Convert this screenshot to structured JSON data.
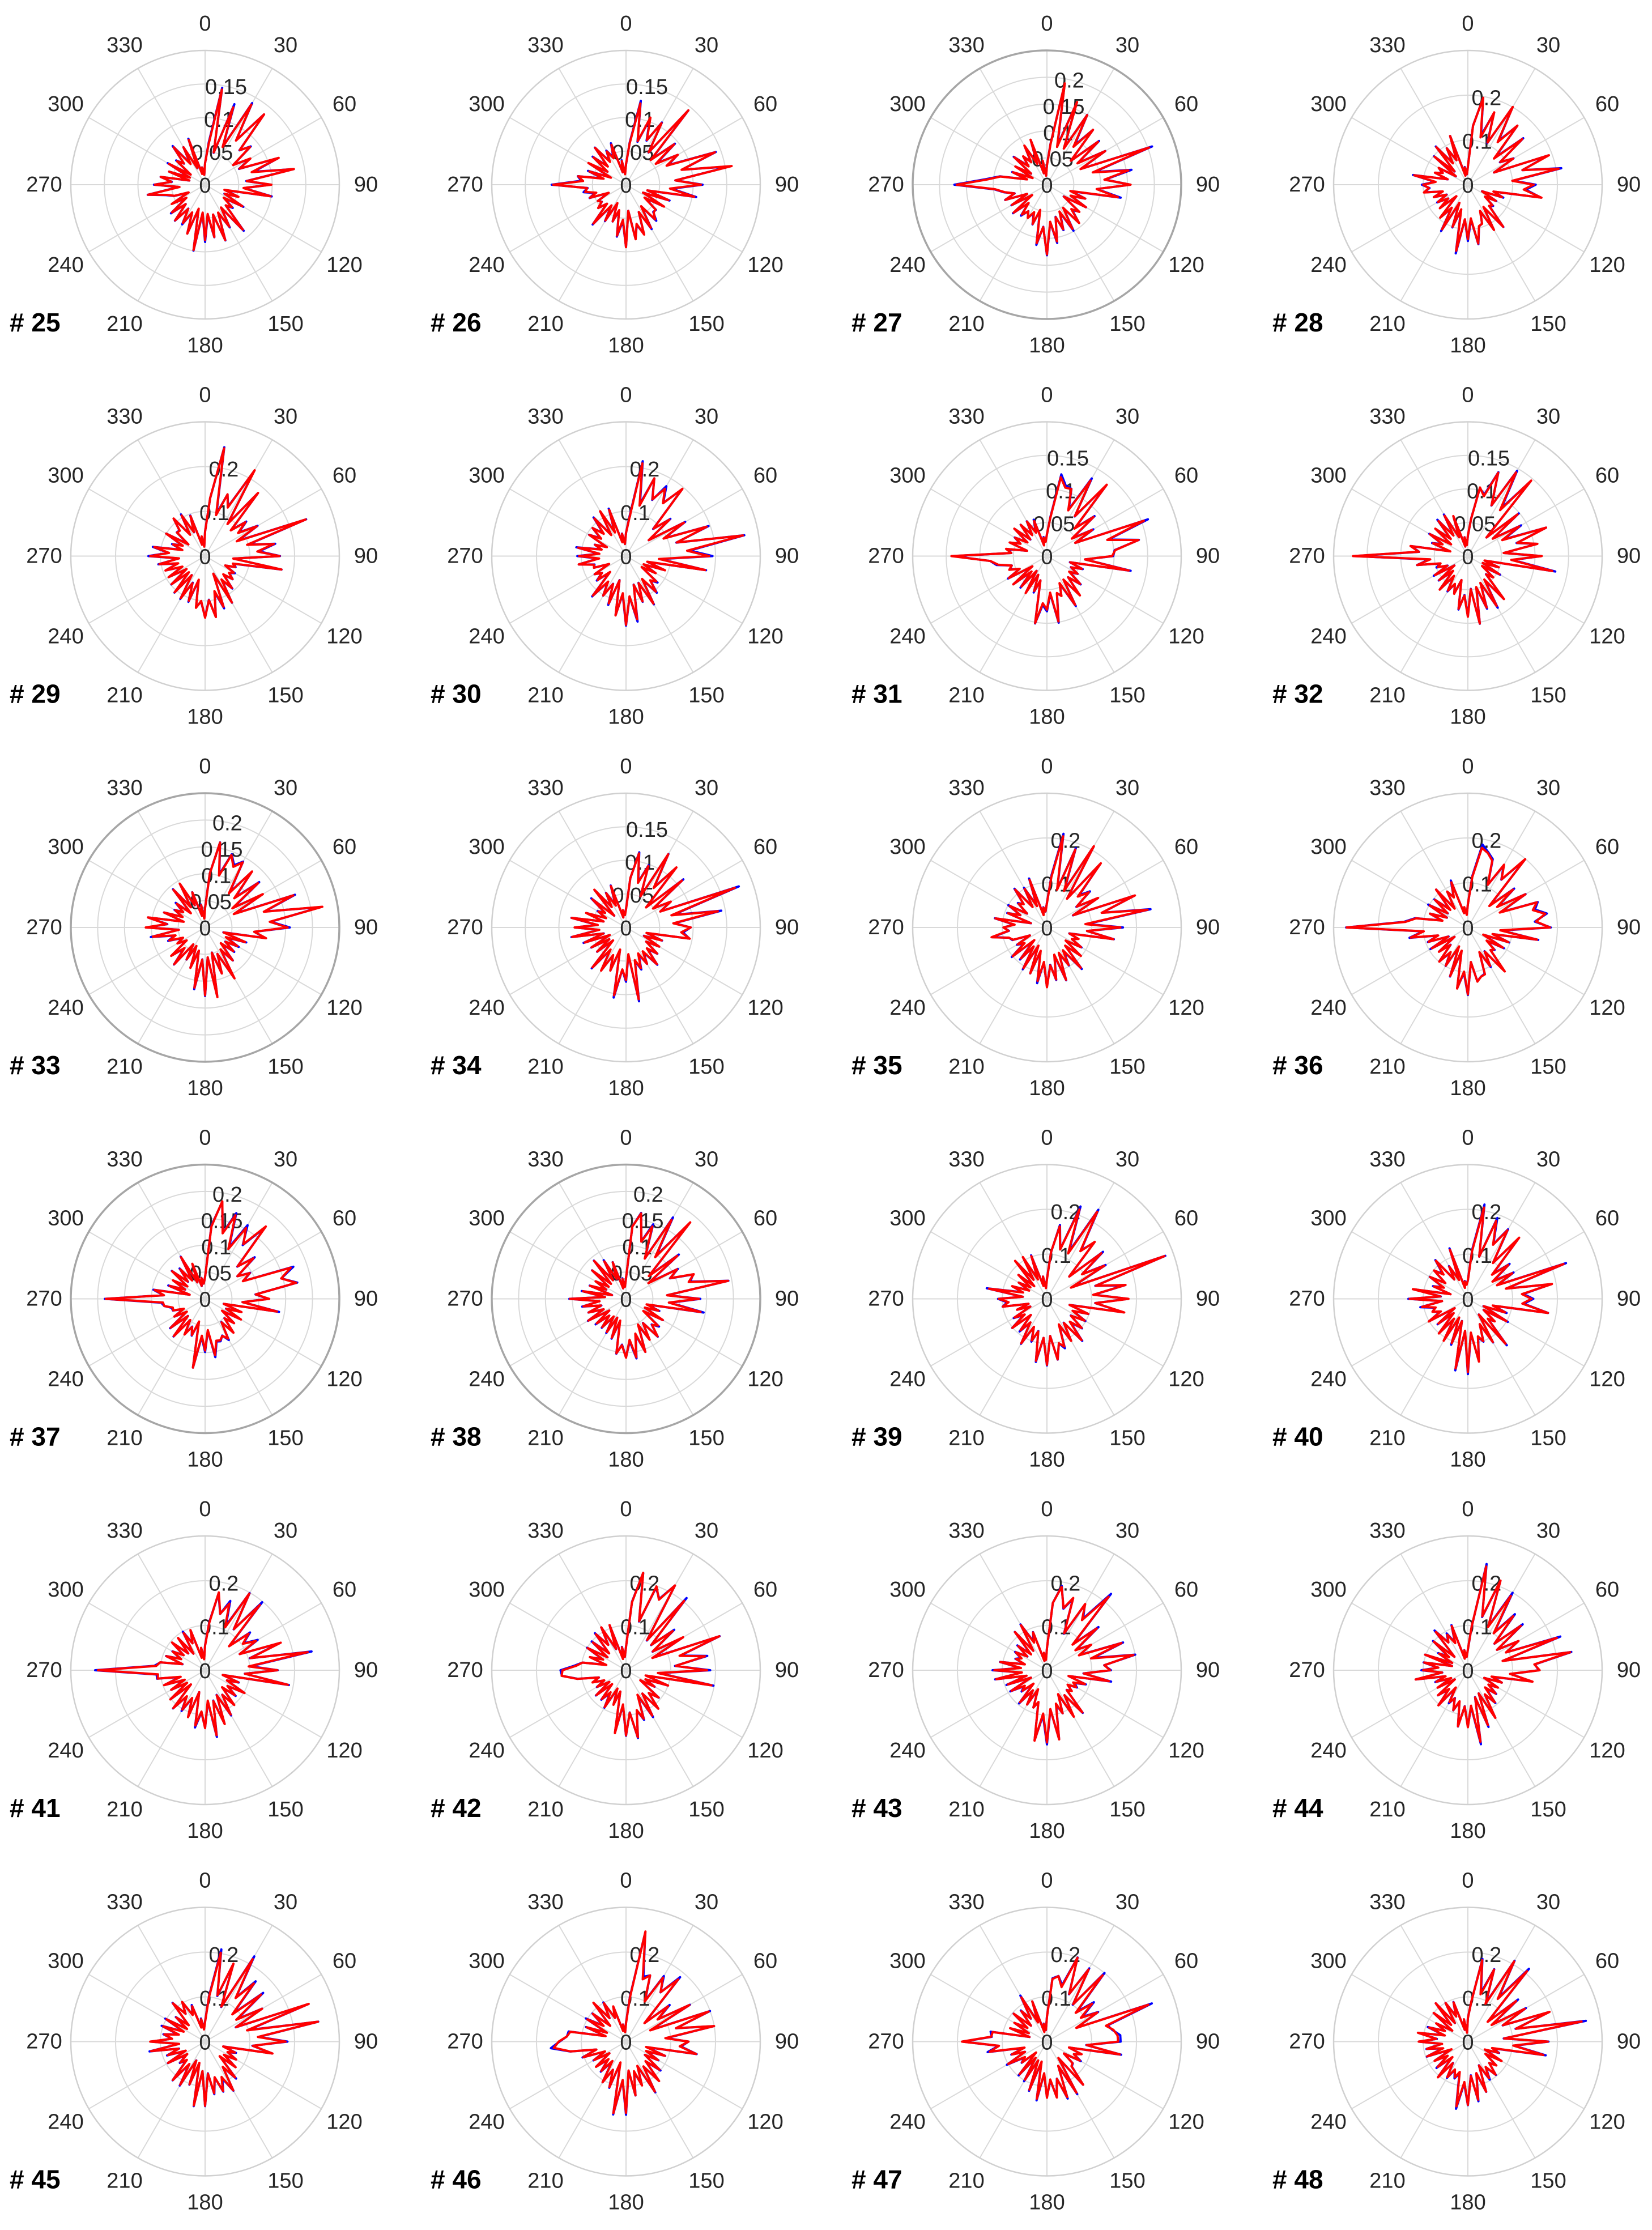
{
  "chart_data": {
    "type": "polar-line",
    "grid": {
      "rows": 6,
      "cols": 4
    },
    "theta_ticks": [
      "0",
      "30",
      "60",
      "90",
      "120",
      "150",
      "180",
      "210",
      "240",
      "270",
      "300",
      "330"
    ],
    "series_colors": [
      "#0000ff",
      "#ff0000"
    ],
    "panels": [
      {
        "label": "# 25",
        "rmax": 0.2,
        "rticks": [
          "0",
          "0.05",
          "0.1",
          "0.15"
        ],
        "seed": 25,
        "outline": "light"
      },
      {
        "label": "# 26",
        "rmax": 0.2,
        "rticks": [
          "0",
          "0.05",
          "0.1",
          "0.15"
        ],
        "seed": 26,
        "outline": "light"
      },
      {
        "label": "# 27",
        "rmax": 0.25,
        "rticks": [
          "0",
          "0.05",
          "0.1",
          "0.15",
          "0.2"
        ],
        "seed": 27,
        "outline": "dark"
      },
      {
        "label": "# 28",
        "rmax": 0.3,
        "rticks": [
          "0",
          "0.1",
          "0.2"
        ],
        "seed": 28,
        "outline": "light"
      },
      {
        "label": "# 29",
        "rmax": 0.3,
        "rticks": [
          "0",
          "0.1",
          "0.2"
        ],
        "seed": 29,
        "outline": "light"
      },
      {
        "label": "# 30",
        "rmax": 0.3,
        "rticks": [
          "0",
          "0.1",
          "0.2"
        ],
        "seed": 30,
        "outline": "light"
      },
      {
        "label": "# 31",
        "rmax": 0.2,
        "rticks": [
          "0",
          "0.05",
          "0.1",
          "0.15"
        ],
        "seed": 31,
        "outline": "light"
      },
      {
        "label": "# 32",
        "rmax": 0.2,
        "rticks": [
          "0",
          "0.05",
          "0.1",
          "0.15"
        ],
        "seed": 32,
        "outline": "light"
      },
      {
        "label": "# 33",
        "rmax": 0.25,
        "rticks": [
          "0",
          "0.05",
          "0.1",
          "0.15",
          "0.2"
        ],
        "seed": 33,
        "outline": "dark"
      },
      {
        "label": "# 34",
        "rmax": 0.2,
        "rticks": [
          "0",
          "0.05",
          "0.1",
          "0.15"
        ],
        "seed": 34,
        "outline": "light"
      },
      {
        "label": "# 35",
        "rmax": 0.3,
        "rticks": [
          "0",
          "0.1",
          "0.2"
        ],
        "seed": 35,
        "outline": "light"
      },
      {
        "label": "# 36",
        "rmax": 0.3,
        "rticks": [
          "0",
          "0.1",
          "0.2"
        ],
        "seed": 36,
        "outline": "light"
      },
      {
        "label": "# 37",
        "rmax": 0.25,
        "rticks": [
          "0",
          "0.05",
          "0.1",
          "0.15",
          "0.2"
        ],
        "seed": 37,
        "outline": "dark"
      },
      {
        "label": "# 38",
        "rmax": 0.25,
        "rticks": [
          "0",
          "0.05",
          "0.1",
          "0.15",
          "0.2"
        ],
        "seed": 38,
        "outline": "dark"
      },
      {
        "label": "# 39",
        "rmax": 0.3,
        "rticks": [
          "0",
          "0.1",
          "0.2"
        ],
        "seed": 39,
        "outline": "light"
      },
      {
        "label": "# 40",
        "rmax": 0.3,
        "rticks": [
          "0",
          "0.1",
          "0.2"
        ],
        "seed": 40,
        "outline": "light"
      },
      {
        "label": "# 41",
        "rmax": 0.3,
        "rticks": [
          "0",
          "0.1",
          "0.2"
        ],
        "seed": 41,
        "outline": "light"
      },
      {
        "label": "# 42",
        "rmax": 0.3,
        "rticks": [
          "0",
          "0.1",
          "0.2"
        ],
        "seed": 42,
        "outline": "light"
      },
      {
        "label": "# 43",
        "rmax": 0.3,
        "rticks": [
          "0",
          "0.1",
          "0.2"
        ],
        "seed": 43,
        "outline": "light"
      },
      {
        "label": "# 44",
        "rmax": 0.3,
        "rticks": [
          "0",
          "0.1",
          "0.2"
        ],
        "seed": 44,
        "outline": "light"
      },
      {
        "label": "# 45",
        "rmax": 0.3,
        "rticks": [
          "0",
          "0.1",
          "0.2"
        ],
        "seed": 45,
        "outline": "light"
      },
      {
        "label": "# 46",
        "rmax": 0.3,
        "rticks": [
          "0",
          "0.1",
          "0.2"
        ],
        "seed": 46,
        "outline": "light"
      },
      {
        "label": "# 47",
        "rmax": 0.3,
        "rticks": [
          "0",
          "0.1",
          "0.2"
        ],
        "seed": 47,
        "outline": "light"
      },
      {
        "label": "# 48",
        "rmax": 0.3,
        "rticks": [
          "0",
          "0.1",
          "0.2"
        ],
        "seed": 48,
        "outline": "light"
      }
    ]
  }
}
